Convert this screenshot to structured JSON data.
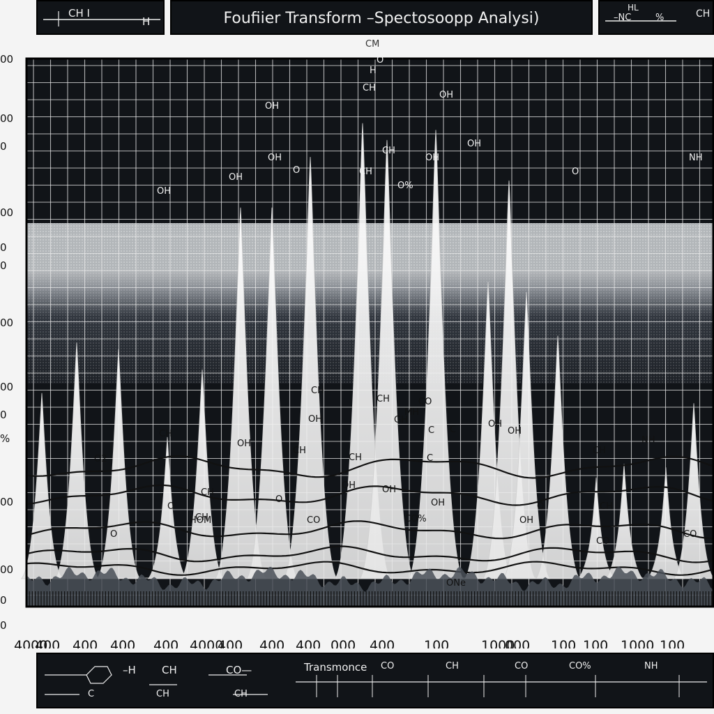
{
  "header": {
    "title": "Foufiier Transform –Spectosoopp  Analysi)",
    "left_label": "CH I",
    "left_sub": "H",
    "right_label_1": "–NC",
    "right_label_2": "%",
    "right_top": "HL",
    "right_label_3": "CH"
  },
  "top_center_label": "CM",
  "footer": {
    "labels": [
      "–H",
      "CH",
      "CO—",
      "Transmonce",
      "CO",
      "CH",
      "CO",
      "CO%",
      "NH"
    ],
    "sub_labels": [
      "C",
      "CH",
      "CH"
    ]
  },
  "colors": {
    "background": "#111418",
    "bands": "#cfd3d8",
    "peaks": "#f7f7f7",
    "frame": "#000000"
  },
  "chart_data": {
    "type": "line",
    "title": "Foufiier Transform –Spectosoopp  Analysi)",
    "xlabel": "",
    "ylabel": "",
    "x_tick_labels": [
      "4000",
      "400",
      "400",
      "400",
      "400",
      "4000",
      "400",
      "400",
      "400",
      "000",
      "400",
      "100",
      "1000",
      "000",
      "100",
      "100",
      "1000",
      "100"
    ],
    "y_tick_labels": [
      "00",
      "00",
      "0",
      "00",
      "0",
      "0",
      "00",
      "00",
      "0",
      "%",
      "00",
      "00",
      "0",
      "0"
    ],
    "peaks": [
      {
        "x": 60,
        "y": 55
      },
      {
        "x": 110,
        "y": 70
      },
      {
        "x": 170,
        "y": 68
      },
      {
        "x": 240,
        "y": 42
      },
      {
        "x": 290,
        "y": 62
      },
      {
        "x": 345,
        "y": 110
      },
      {
        "x": 390,
        "y": 110
      },
      {
        "x": 445,
        "y": 125
      },
      {
        "x": 520,
        "y": 135
      },
      {
        "x": 555,
        "y": 130
      },
      {
        "x": 625,
        "y": 133
      },
      {
        "x": 700,
        "y": 88
      },
      {
        "x": 730,
        "y": 118
      },
      {
        "x": 755,
        "y": 85
      },
      {
        "x": 800,
        "y": 72
      },
      {
        "x": 855,
        "y": 30
      },
      {
        "x": 895,
        "y": 34
      },
      {
        "x": 955,
        "y": 33
      },
      {
        "x": 995,
        "y": 52
      }
    ],
    "annotations": [
      "OH",
      "CH",
      "OH",
      "H",
      "O",
      "CH",
      "OH",
      "O",
      "O%",
      "OH",
      "O",
      "OH",
      "CH",
      "O2",
      "CH",
      "OH",
      "CH",
      "OH",
      "CO",
      "OH",
      "OH",
      "OH",
      "CH",
      "CH",
      "HOM",
      "CH",
      "CO",
      "CO%",
      "CH",
      "CH",
      "OH",
      "OH",
      "CH",
      "GH",
      "C",
      "CH",
      "NH",
      "O",
      "CO",
      "O",
      "C",
      "OH",
      "ONe",
      "CO",
      "OH",
      "OH",
      "C",
      "O",
      "MH",
      "O",
      "NH"
    ]
  }
}
